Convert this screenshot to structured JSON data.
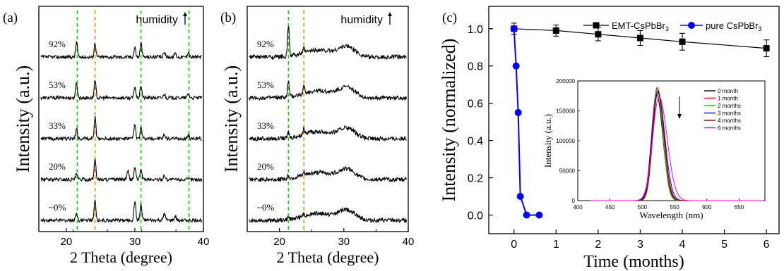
{
  "chart_data": [
    {
      "id": "a",
      "type": "line",
      "panel_label": "(a)",
      "xlabel": "2 Theta (degree)",
      "ylabel": "Intensity (a.u.)",
      "xlim": [
        16,
        40
      ],
      "xticks": [
        "20",
        "30",
        "40"
      ],
      "annotation": "humidity",
      "arrow": "up",
      "series": [
        {
          "name": "92%",
          "peaks": [
            [
              21.5,
              22
            ],
            [
              24.2,
              20
            ],
            [
              30.0,
              14
            ],
            [
              30.9,
              20
            ],
            [
              34.3,
              8
            ],
            [
              35.9,
              6
            ],
            [
              37.8,
              8
            ]
          ]
        },
        {
          "name": "53%",
          "peaks": [
            [
              21.5,
              22
            ],
            [
              24.2,
              24
            ],
            [
              30.0,
              16
            ],
            [
              30.9,
              18
            ],
            [
              34.3,
              6
            ],
            [
              37.8,
              6
            ]
          ]
        },
        {
          "name": "33%",
          "peaks": [
            [
              21.5,
              14
            ],
            [
              24.2,
              30
            ],
            [
              30.0,
              20
            ],
            [
              30.9,
              16
            ],
            [
              34.3,
              6
            ],
            [
              37.8,
              6
            ]
          ]
        },
        {
          "name": "20%",
          "peaks": [
            [
              21.5,
              8
            ],
            [
              24.2,
              30
            ],
            [
              29.0,
              12
            ],
            [
              30.0,
              18
            ],
            [
              30.9,
              16
            ],
            [
              34.3,
              6
            ]
          ]
        },
        {
          "name": "~0%",
          "peaks": [
            [
              21.5,
              10
            ],
            [
              24.2,
              28
            ],
            [
              30.0,
              28
            ],
            [
              30.9,
              22
            ],
            [
              34.3,
              10
            ],
            [
              35.9,
              6
            ]
          ]
        }
      ],
      "reference_lines": [
        {
          "x": 21.6,
          "color": "#00dd00"
        },
        {
          "x": 24.2,
          "color": "#ff8800"
        },
        {
          "x": 30.9,
          "color": "#00dd00"
        },
        {
          "x": 37.9,
          "color": "#00dd00"
        }
      ]
    },
    {
      "id": "b",
      "type": "line",
      "panel_label": "(b)",
      "xlabel": "2 Theta (degree)",
      "ylabel": "Intensity (a.u.)",
      "xlim": [
        15,
        40
      ],
      "xticks": [
        "20",
        "30",
        "40"
      ],
      "annotation": "humidity",
      "arrow": "up",
      "series": [
        {
          "name": "92%",
          "peaks": [
            [
              21.4,
              44
            ],
            [
              23.8,
              6
            ]
          ]
        },
        {
          "name": "53%",
          "peaks": [
            [
              21.4,
              22
            ],
            [
              23.8,
              10
            ]
          ]
        },
        {
          "name": "33%",
          "peaks": [
            [
              21.4,
              8
            ],
            [
              23.8,
              10
            ]
          ]
        },
        {
          "name": "20%",
          "peaks": [
            [
              21.4,
              5
            ],
            [
              23.8,
              4
            ]
          ]
        },
        {
          "name": "~0%",
          "peaks": [
            [
              21.4,
              3
            ],
            [
              23.8,
              3
            ]
          ]
        }
      ],
      "reference_lines": [
        {
          "x": 21.4,
          "color": "#00dd00"
        },
        {
          "x": 23.8,
          "color": "#ff8800"
        }
      ]
    },
    {
      "id": "c",
      "type": "line",
      "panel_label": "(c)",
      "xlabel": "Time (months)",
      "ylabel": "Intensity (normalized)",
      "xlim": [
        -0.6,
        6.3
      ],
      "ylim": [
        -0.1,
        1.12
      ],
      "xticks": [
        0,
        1,
        2,
        3,
        4,
        5,
        6
      ],
      "yticks": [
        0.0,
        0.2,
        0.4,
        0.6,
        0.8,
        1.0
      ],
      "legend": "top",
      "series": [
        {
          "name": "EMT-CsPbBr3",
          "color": "#000000",
          "marker": "square",
          "x": [
            0,
            1,
            2,
            3,
            4,
            6
          ],
          "y": [
            1.0,
            0.99,
            0.97,
            0.95,
            0.93,
            0.895
          ],
          "err": [
            0.03,
            0.03,
            0.035,
            0.04,
            0.045,
            0.045
          ]
        },
        {
          "name": "pure CsPbBr3",
          "color": "#0000ff",
          "marker": "circle",
          "x": [
            0,
            0.05,
            0.1,
            0.15,
            0.3,
            0.6
          ],
          "y": [
            1.0,
            0.8,
            0.55,
            0.1,
            0.0,
            0.0
          ],
          "err": []
        }
      ],
      "inset": {
        "type": "line",
        "xlabel": "Wavelength (nm)",
        "ylabel": "Intensity (a.u.)",
        "xlim": [
          400,
          690
        ],
        "ylim": [
          0,
          200000
        ],
        "xticks": [
          400,
          450,
          500,
          550,
          600,
          650
        ],
        "yticks": [
          0,
          50000,
          100000,
          150000,
          200000
        ],
        "arrow": "down",
        "series": [
          {
            "name": "0 month",
            "color": "#000000",
            "peak_x": 522,
            "peak_y": 178000,
            "width": 11
          },
          {
            "name": "1 month",
            "color": "#ff0000",
            "peak_x": 523,
            "peak_y": 189000,
            "width": 11
          },
          {
            "name": "2 months",
            "color": "#00cc00",
            "peak_x": 523,
            "peak_y": 186000,
            "width": 10
          },
          {
            "name": "3 months",
            "color": "#0000ff",
            "peak_x": 524,
            "peak_y": 183000,
            "width": 12
          },
          {
            "name": "4 months",
            "color": "#800000",
            "peak_x": 524,
            "peak_y": 181000,
            "width": 11
          },
          {
            "name": "6 months",
            "color": "#ff00cc",
            "peak_x": 526,
            "peak_y": 174000,
            "width": 14
          }
        ]
      }
    }
  ]
}
